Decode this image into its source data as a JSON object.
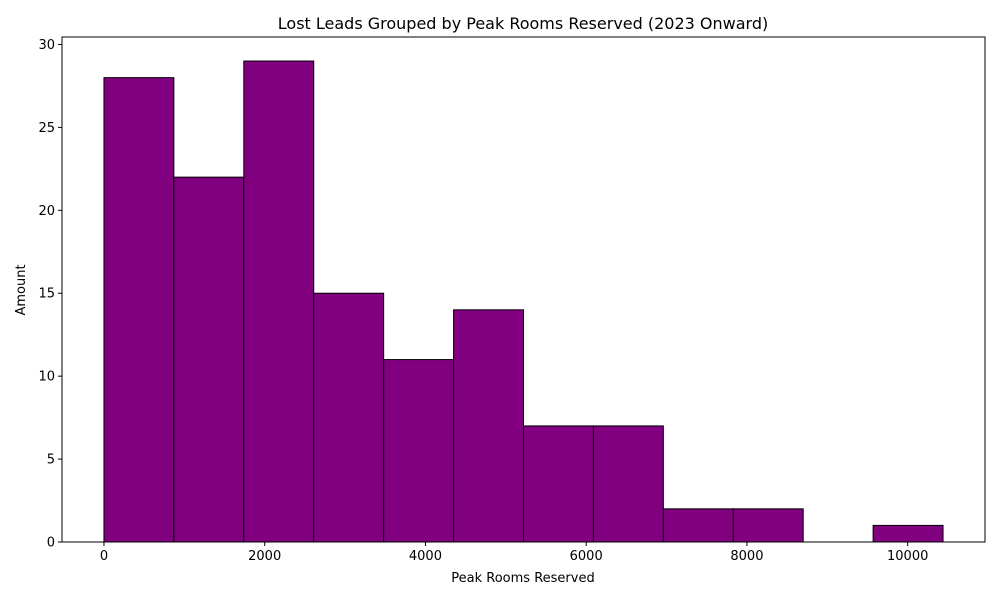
{
  "chart_data": {
    "type": "bar",
    "subtype": "histogram",
    "title": "Lost Leads Grouped by Peak Rooms Reserved (2023 Onward)",
    "xlabel": "Peak Rooms Reserved",
    "ylabel": "Amount",
    "bin_edges": [
      0,
      870,
      1740,
      2610,
      3480,
      4350,
      5220,
      6090,
      6960,
      7830,
      8700,
      9570,
      10440
    ],
    "counts": [
      28,
      22,
      29,
      15,
      11,
      14,
      7,
      7,
      2,
      2,
      0,
      1
    ],
    "xlim": [
      -522,
      10962
    ],
    "ylim": [
      0,
      30.45
    ],
    "x_ticks": [
      0,
      2000,
      4000,
      6000,
      8000,
      10000
    ],
    "y_ticks": [
      0,
      5,
      10,
      15,
      20,
      25,
      30
    ],
    "bar_color": "#800080",
    "edge_color": "#000000",
    "grid": false,
    "legend": "none"
  }
}
